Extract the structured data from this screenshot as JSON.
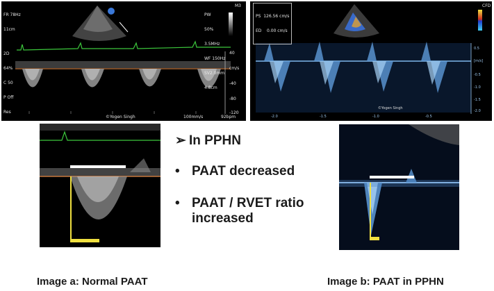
{
  "panel_a": {
    "header_left": [
      "FR 78Hz",
      "11cm",
      "",
      "2D",
      "64%",
      "C 50",
      "P Off",
      "Res"
    ],
    "header_right": [
      "PW",
      "50%",
      "3.5MHz",
      "WF 150Hz",
      "SV2.0mm",
      "4.8cm"
    ],
    "corner_label": "M3",
    "scale_ticks": [
      "40",
      "cm/s",
      "-40",
      "-80",
      "-120"
    ],
    "watermark": "©Yogen Singh",
    "sweep_speed": "100mm/s",
    "heart_rate": "92bpm"
  },
  "panel_b": {
    "measure_box": [
      "PS  126.56 cm/s",
      "ED    0.00 cm/s"
    ],
    "corner_label": "CFD",
    "scale_ticks": [
      "0.5",
      "[m/s]",
      "-0.5",
      "-1.0",
      "-1.5",
      "-2.0"
    ],
    "time_ticks": [
      "-2.0",
      "-1.5",
      "-1.0",
      "-0.5"
    ],
    "watermark": "©Yogen Singh"
  },
  "slide": {
    "bullet_heading": "In PPHN",
    "bullets": [
      "PAAT decreased",
      "PAAT / RVET ratio increased"
    ]
  },
  "captions": {
    "left": "Image a: Normal PAAT",
    "right": "Image b: PAAT in PPHN"
  },
  "colors": {
    "ecg_trace": "#3cc83c",
    "baseline_orange": "#c8783c",
    "doppler_blue": "#7fb8ec",
    "measure_white": "#ffffff",
    "measure_yellow": "#f0e040"
  }
}
